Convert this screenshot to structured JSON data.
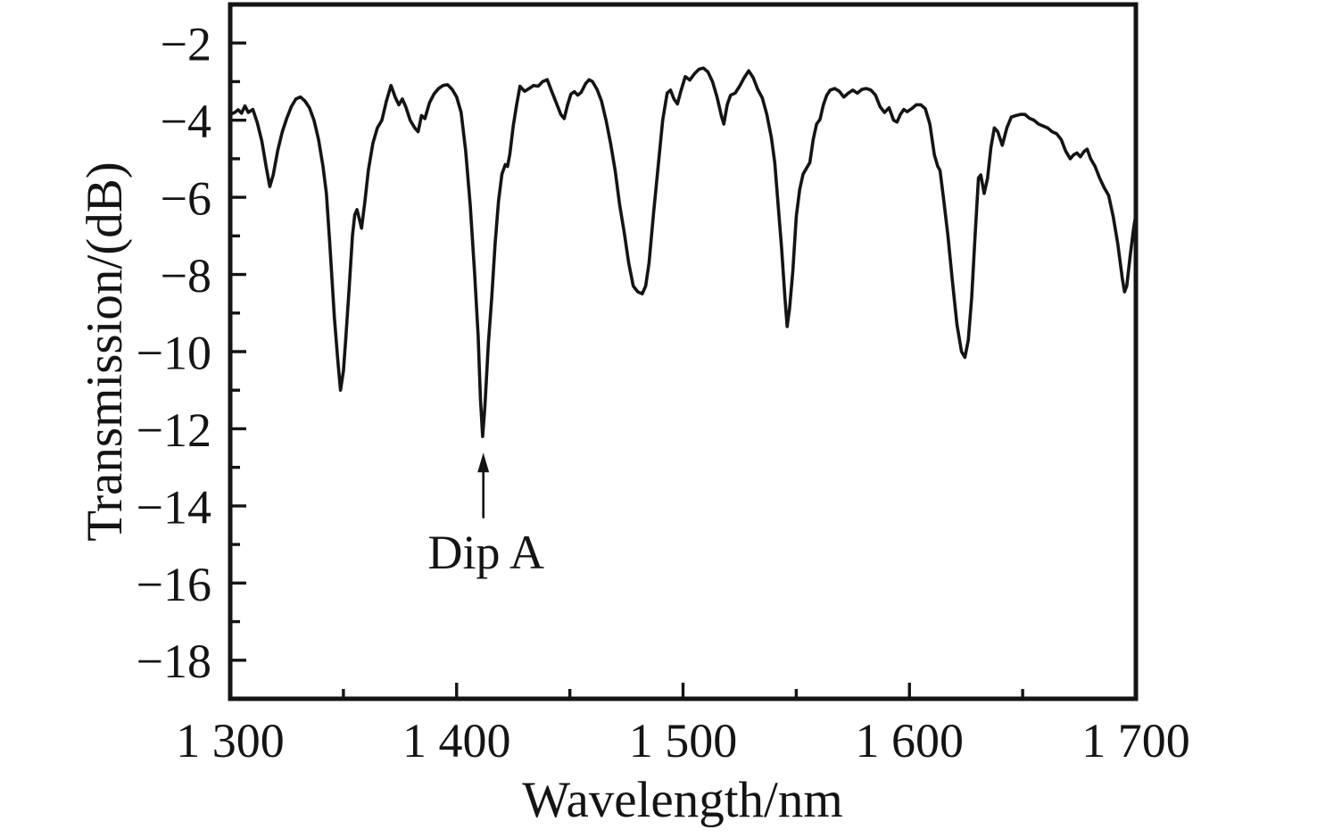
{
  "figure": {
    "background_color": "#ffffff",
    "line_color": "#141414"
  },
  "chart_data": {
    "type": "line",
    "title": "",
    "xlabel": "Wavelength/nm",
    "ylabel": "Transmission/(dB)",
    "xlim": [
      1300,
      1700
    ],
    "ylim": [
      -19,
      -1
    ],
    "grid": false,
    "legend_position": "none",
    "x_major_ticks": [
      {
        "value": 1300,
        "label": "1 300"
      },
      {
        "value": 1400,
        "label": "1 400"
      },
      {
        "value": 1500,
        "label": "1 500"
      },
      {
        "value": 1600,
        "label": "1 600"
      },
      {
        "value": 1700,
        "label": "1 700"
      }
    ],
    "x_minor_ticks": [
      1350,
      1450,
      1550,
      1650
    ],
    "y_major_ticks": [
      {
        "value": -2,
        "label": "−2"
      },
      {
        "value": -4,
        "label": "−4"
      },
      {
        "value": -6,
        "label": "−6"
      },
      {
        "value": -8,
        "label": "−8"
      },
      {
        "value": -10,
        "label": "−10"
      },
      {
        "value": -12,
        "label": "−12"
      },
      {
        "value": -14,
        "label": "−14"
      },
      {
        "value": -16,
        "label": "−16"
      },
      {
        "value": -18,
        "label": "−18"
      }
    ],
    "y_minor_ticks": [
      -3,
      -5,
      -7,
      -9,
      -11,
      -13,
      -15,
      -17
    ],
    "annotations": [
      {
        "text": "Dip A",
        "text_at": {
          "x": 1413,
          "y": -15.17
        },
        "arrow": {
          "x": 1411.8,
          "from_y": -14.32,
          "to_y": -12.62
        }
      }
    ],
    "dips": [
      {
        "wavelength": 1317.5,
        "depth_db": -5.7
      },
      {
        "wavelength": 1349,
        "depth_db": -11.0
      },
      {
        "wavelength": 1411.5,
        "depth_db": -12.2,
        "label": "Dip A"
      },
      {
        "wavelength": 1481,
        "depth_db": -8.5
      },
      {
        "wavelength": 1546,
        "depth_db": -9.35
      },
      {
        "wavelength": 1624.5,
        "depth_db": -10.15
      },
      {
        "wavelength": 1695,
        "depth_db": -8.45
      }
    ],
    "series": [
      {
        "name": "transmission-spectrum",
        "color": "#141414",
        "points": [
          [
            1300,
            -3.85
          ],
          [
            1302,
            -3.8
          ],
          [
            1303.5,
            -3.73
          ],
          [
            1305,
            -3.82
          ],
          [
            1306.5,
            -3.63
          ],
          [
            1308,
            -3.8
          ],
          [
            1310,
            -3.72
          ],
          [
            1312,
            -4.07
          ],
          [
            1314,
            -4.55
          ],
          [
            1316,
            -5.25
          ],
          [
            1317.5,
            -5.72
          ],
          [
            1319,
            -5.42
          ],
          [
            1321,
            -4.78
          ],
          [
            1323,
            -4.3
          ],
          [
            1325,
            -3.95
          ],
          [
            1327,
            -3.65
          ],
          [
            1329,
            -3.45
          ],
          [
            1331,
            -3.4
          ],
          [
            1333,
            -3.5
          ],
          [
            1335,
            -3.68
          ],
          [
            1337,
            -4.0
          ],
          [
            1339,
            -4.5
          ],
          [
            1341,
            -5.2
          ],
          [
            1342.5,
            -5.9
          ],
          [
            1344,
            -7.2
          ],
          [
            1346,
            -9.1
          ],
          [
            1347.5,
            -10.2
          ],
          [
            1348.7,
            -11.0
          ],
          [
            1350,
            -10.5
          ],
          [
            1351,
            -9.7
          ],
          [
            1352.5,
            -8.4
          ],
          [
            1354,
            -7.0
          ],
          [
            1355,
            -6.45
          ],
          [
            1356,
            -6.32
          ],
          [
            1357,
            -6.55
          ],
          [
            1358,
            -6.8
          ],
          [
            1359.5,
            -6.1
          ],
          [
            1361,
            -5.3
          ],
          [
            1363,
            -4.6
          ],
          [
            1365,
            -4.2
          ],
          [
            1367,
            -4.0
          ],
          [
            1369,
            -3.5
          ],
          [
            1371,
            -3.1
          ],
          [
            1373,
            -3.42
          ],
          [
            1374.5,
            -3.6
          ],
          [
            1376,
            -3.45
          ],
          [
            1377.5,
            -3.65
          ],
          [
            1379.5,
            -4.0
          ],
          [
            1381.5,
            -4.2
          ],
          [
            1383,
            -4.3
          ],
          [
            1384.5,
            -3.88
          ],
          [
            1386,
            -3.96
          ],
          [
            1388,
            -3.55
          ],
          [
            1390,
            -3.32
          ],
          [
            1392,
            -3.18
          ],
          [
            1394,
            -3.1
          ],
          [
            1396,
            -3.08
          ],
          [
            1398,
            -3.2
          ],
          [
            1400,
            -3.4
          ],
          [
            1402,
            -3.8
          ],
          [
            1404,
            -4.8
          ],
          [
            1406,
            -6.2
          ],
          [
            1408,
            -8.0
          ],
          [
            1409.5,
            -9.6
          ],
          [
            1410.5,
            -11.2
          ],
          [
            1411.5,
            -12.2
          ],
          [
            1412.5,
            -11.4
          ],
          [
            1414,
            -9.8
          ],
          [
            1415.5,
            -8.6
          ],
          [
            1417,
            -7.2
          ],
          [
            1418.5,
            -6.1
          ],
          [
            1420,
            -5.4
          ],
          [
            1421.5,
            -5.15
          ],
          [
            1422.5,
            -5.2
          ],
          [
            1423.5,
            -4.88
          ],
          [
            1425,
            -4.15
          ],
          [
            1426.5,
            -3.6
          ],
          [
            1428,
            -3.12
          ],
          [
            1430,
            -3.25
          ],
          [
            1432,
            -3.18
          ],
          [
            1434,
            -3.1
          ],
          [
            1436,
            -3.12
          ],
          [
            1438,
            -3.0
          ],
          [
            1440,
            -2.95
          ],
          [
            1442,
            -3.25
          ],
          [
            1444,
            -3.55
          ],
          [
            1446,
            -3.85
          ],
          [
            1447.5,
            -3.96
          ],
          [
            1449,
            -3.6
          ],
          [
            1450.5,
            -3.32
          ],
          [
            1452,
            -3.26
          ],
          [
            1453.5,
            -3.35
          ],
          [
            1455,
            -3.28
          ],
          [
            1457,
            -3.05
          ],
          [
            1458.5,
            -2.95
          ],
          [
            1460,
            -3.0
          ],
          [
            1462,
            -3.2
          ],
          [
            1464,
            -3.5
          ],
          [
            1466,
            -4.0
          ],
          [
            1468,
            -4.6
          ],
          [
            1470,
            -5.3
          ],
          [
            1472,
            -6.2
          ],
          [
            1474,
            -6.9
          ],
          [
            1476,
            -7.7
          ],
          [
            1478,
            -8.3
          ],
          [
            1480,
            -8.45
          ],
          [
            1482,
            -8.5
          ],
          [
            1483.5,
            -8.3
          ],
          [
            1485,
            -7.7
          ],
          [
            1487,
            -6.4
          ],
          [
            1489,
            -5.2
          ],
          [
            1491,
            -4.0
          ],
          [
            1493,
            -3.3
          ],
          [
            1494.5,
            -3.22
          ],
          [
            1496,
            -3.45
          ],
          [
            1497.5,
            -3.58
          ],
          [
            1499,
            -3.25
          ],
          [
            1501,
            -2.87
          ],
          [
            1503,
            -2.96
          ],
          [
            1505,
            -2.8
          ],
          [
            1507,
            -2.68
          ],
          [
            1509,
            -2.65
          ],
          [
            1511,
            -2.75
          ],
          [
            1513,
            -3.0
          ],
          [
            1515,
            -3.4
          ],
          [
            1517,
            -3.9
          ],
          [
            1518,
            -4.1
          ],
          [
            1519.5,
            -3.6
          ],
          [
            1521,
            -3.35
          ],
          [
            1523,
            -3.3
          ],
          [
            1525,
            -3.12
          ],
          [
            1527,
            -2.9
          ],
          [
            1529,
            -2.72
          ],
          [
            1531,
            -2.9
          ],
          [
            1533,
            -3.2
          ],
          [
            1535,
            -3.42
          ],
          [
            1537,
            -3.85
          ],
          [
            1539,
            -4.45
          ],
          [
            1540.5,
            -5.1
          ],
          [
            1542,
            -6.2
          ],
          [
            1543.5,
            -7.3
          ],
          [
            1545,
            -8.6
          ],
          [
            1546,
            -9.35
          ],
          [
            1547,
            -8.9
          ],
          [
            1548.5,
            -7.9
          ],
          [
            1550,
            -6.5
          ],
          [
            1551.5,
            -5.8
          ],
          [
            1553,
            -5.4
          ],
          [
            1554.5,
            -5.25
          ],
          [
            1556,
            -5.1
          ],
          [
            1557.5,
            -4.5
          ],
          [
            1559,
            -4.1
          ],
          [
            1560.5,
            -3.98
          ],
          [
            1562,
            -3.6
          ],
          [
            1563.5,
            -3.35
          ],
          [
            1565,
            -3.22
          ],
          [
            1567,
            -3.18
          ],
          [
            1569,
            -3.25
          ],
          [
            1571,
            -3.4
          ],
          [
            1573,
            -3.3
          ],
          [
            1575,
            -3.22
          ],
          [
            1577,
            -3.3
          ],
          [
            1579,
            -3.2
          ],
          [
            1581,
            -3.18
          ],
          [
            1583,
            -3.22
          ],
          [
            1585,
            -3.35
          ],
          [
            1587,
            -3.65
          ],
          [
            1589,
            -3.8
          ],
          [
            1591,
            -3.68
          ],
          [
            1593,
            -4.0
          ],
          [
            1594.5,
            -4.05
          ],
          [
            1596,
            -3.85
          ],
          [
            1597.5,
            -3.72
          ],
          [
            1599,
            -3.78
          ],
          [
            1601,
            -3.7
          ],
          [
            1603,
            -3.6
          ],
          [
            1605,
            -3.6
          ],
          [
            1607,
            -3.7
          ],
          [
            1609,
            -4.1
          ],
          [
            1611,
            -4.9
          ],
          [
            1612.5,
            -5.2
          ],
          [
            1613.5,
            -5.3
          ],
          [
            1615,
            -6.0
          ],
          [
            1617,
            -7.0
          ],
          [
            1619,
            -8.2
          ],
          [
            1621,
            -9.3
          ],
          [
            1623,
            -10.0
          ],
          [
            1624.5,
            -10.15
          ],
          [
            1626,
            -9.7
          ],
          [
            1627.5,
            -8.6
          ],
          [
            1629,
            -7.0
          ],
          [
            1630.5,
            -5.5
          ],
          [
            1631.5,
            -5.42
          ],
          [
            1633,
            -5.9
          ],
          [
            1634.5,
            -5.5
          ],
          [
            1636,
            -4.7
          ],
          [
            1637.5,
            -4.2
          ],
          [
            1639,
            -4.3
          ],
          [
            1641,
            -4.65
          ],
          [
            1643,
            -4.2
          ],
          [
            1645,
            -3.92
          ],
          [
            1647,
            -3.88
          ],
          [
            1649,
            -3.85
          ],
          [
            1651,
            -3.85
          ],
          [
            1653,
            -3.95
          ],
          [
            1655,
            -4.0
          ],
          [
            1657,
            -4.1
          ],
          [
            1659,
            -4.15
          ],
          [
            1661,
            -4.2
          ],
          [
            1663,
            -4.3
          ],
          [
            1665,
            -4.35
          ],
          [
            1667,
            -4.5
          ],
          [
            1669,
            -4.8
          ],
          [
            1671,
            -5.0
          ],
          [
            1672.5,
            -4.9
          ],
          [
            1674,
            -4.85
          ],
          [
            1675.5,
            -4.95
          ],
          [
            1677,
            -4.82
          ],
          [
            1678.5,
            -4.75
          ],
          [
            1680,
            -5.0
          ],
          [
            1682,
            -5.2
          ],
          [
            1684,
            -5.5
          ],
          [
            1686,
            -5.75
          ],
          [
            1688,
            -5.95
          ],
          [
            1690,
            -6.5
          ],
          [
            1692,
            -7.2
          ],
          [
            1694,
            -8.1
          ],
          [
            1695,
            -8.45
          ],
          [
            1696,
            -8.3
          ],
          [
            1697.5,
            -7.5
          ],
          [
            1699,
            -6.8
          ],
          [
            1700,
            -6.45
          ]
        ]
      }
    ]
  }
}
